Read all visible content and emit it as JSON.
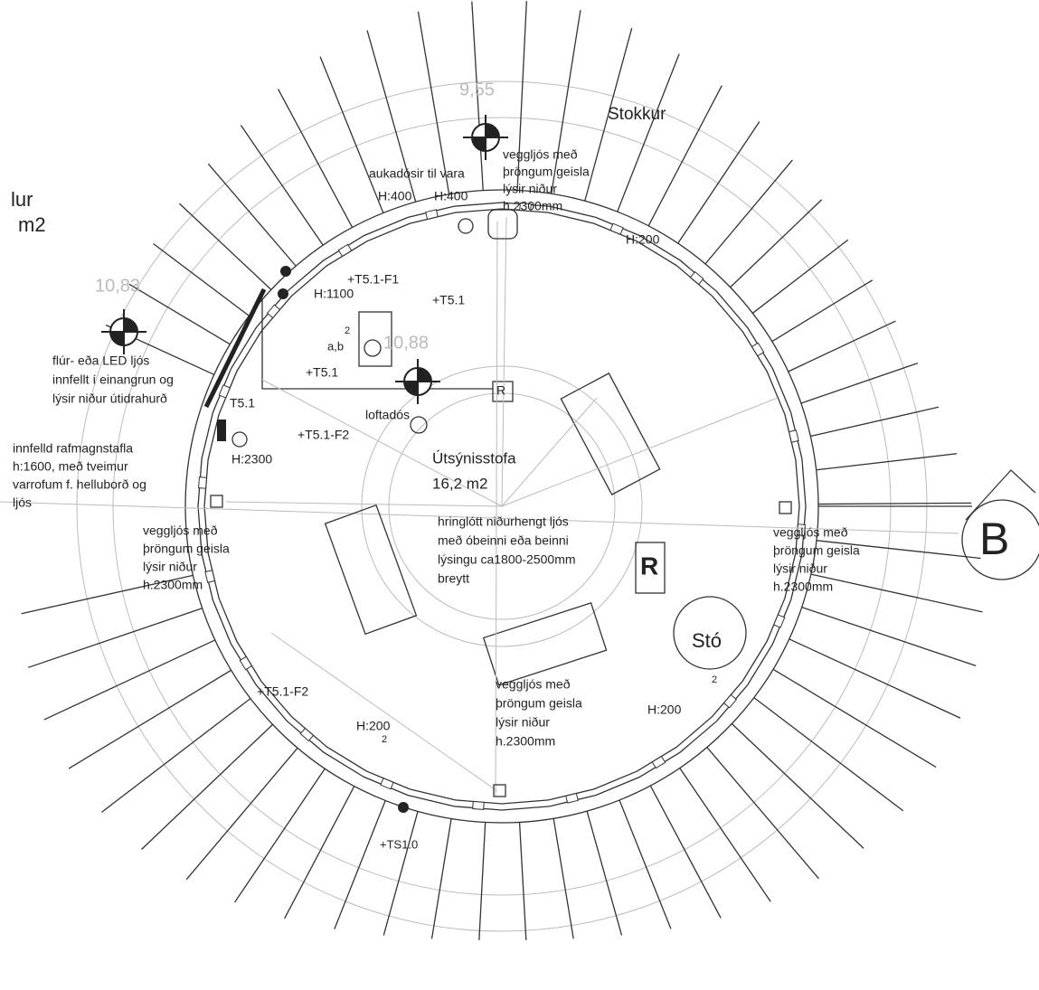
{
  "labels": {
    "area_top": "9,55",
    "stokkur": "Stokkur",
    "wall_light_top": [
      "veggljós með",
      "þröngum geisla",
      "lýsir niður",
      "h.2300mm"
    ],
    "spare_boxes": "aukadósir til vara",
    "h400_a": "H:400",
    "h400_b": "H:400",
    "h200_top": "H:200",
    "room_left_name": "lur",
    "room_left_area": "m2",
    "area_left": "10,83",
    "t51_f1": "+T5.1-F1",
    "h1100": "H:1100",
    "t51_a": "+T5.1",
    "switch_num": "2",
    "switch_ab": "a,b",
    "area_mid": "10,88",
    "led_light": [
      "flúr- eða LED ljós",
      "innfellt í einangrun og",
      "lýsir niður útidrahurð"
    ],
    "t51_panel": "T5.1",
    "ceiling_box": "loftadós",
    "t51_f2_top": "+T5.1-F2",
    "t51_b": "+T5.1",
    "r_small": "R",
    "panel_note": [
      "innfelld rafmagnstafla",
      "h:1600, með tveimur",
      "varrofum f. helluborð og",
      "ljós"
    ],
    "h2300": "H:2300",
    "room_name": "Útsýnisstofa",
    "room_area": "16,2 m2",
    "pendant": [
      "hringlótt niðurhengt ljós",
      "með óbeinni eða beinni",
      "lýsingu ca1800-2500mm",
      "breytt"
    ],
    "wall_light_left": [
      "veggljós með",
      "þröngum geisla",
      "lýsir niður",
      "h.2300mm"
    ],
    "wall_light_right": [
      "veggljós með",
      "þröngum geisla",
      "lýsir niður",
      "h.2300mm"
    ],
    "r_big": "R",
    "stove": "Stó",
    "section": "B",
    "wall_light_bottom": [
      "veggljós með",
      "þröngum geisla",
      "lýsir niður",
      "h.2300mm"
    ],
    "h200_right": "H:200",
    "switch_right": "2",
    "t51_f2_bottom": "+T5.1-F2",
    "h200_left": "H:200",
    "switch_left": "2",
    "ts10": "+TS1.0"
  }
}
